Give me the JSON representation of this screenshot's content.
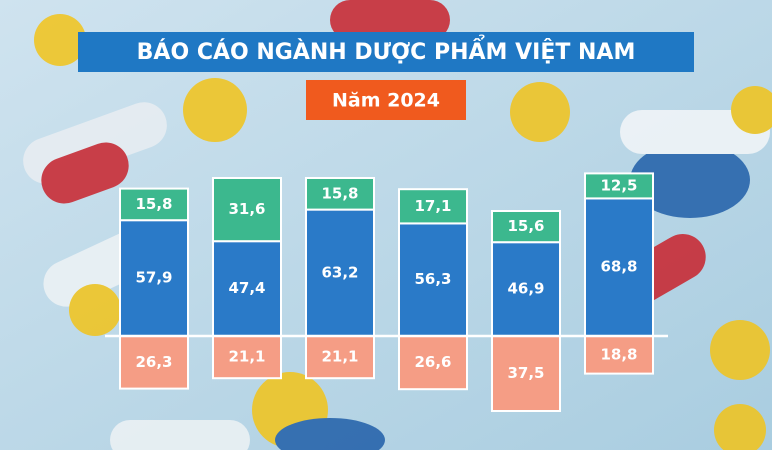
{
  "chart_data": {
    "type": "bar",
    "stacked": true,
    "title": "BÁO CÁO NGÀNH DƯỢC PHẨM VIỆT NAM",
    "subtitle": "Năm 2024",
    "categories": [
      null,
      null,
      null,
      null,
      null,
      null
    ],
    "series": [
      {
        "color": "#2a7ac8",
        "values": [
          57.9,
          47.4,
          63.2,
          56.3,
          46.9,
          68.8
        ],
        "value_labels": [
          "57,9",
          "47,4",
          "63,2",
          "56,3",
          "46,9",
          "68,8"
        ]
      },
      {
        "color": "#3cb88e",
        "values": [
          15.8,
          31.6,
          15.8,
          17.1,
          15.6,
          12.5
        ],
        "value_labels": [
          "15,8",
          "31,6",
          "15,8",
          "17,1",
          "15,6",
          "12,5"
        ]
      },
      {
        "color": "#f59d85",
        "side": "below",
        "values": [
          26.3,
          21.1,
          21.1,
          26.6,
          37.5,
          18.8
        ],
        "value_labels": [
          "26,3",
          "21,1",
          "21,1",
          "26,6",
          "37,5",
          "18,8"
        ]
      }
    ]
  }
}
